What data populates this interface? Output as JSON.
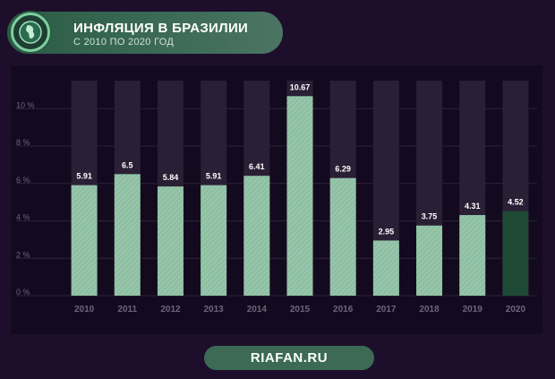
{
  "header": {
    "title": "ИНФЛЯЦИЯ В БРАЗИЛИИ",
    "subtitle": "С 2010 ПО 2020 ГОД"
  },
  "footer": {
    "brand": "RIAFAN.RU"
  },
  "colors": {
    "bar": "#8ebfa3",
    "bar_highlight": "#1f4a36",
    "bar_background": "#2a1f34",
    "axis_text": "#6f6578",
    "label_text": "#ffffff"
  },
  "chart_data": {
    "type": "bar",
    "categories": [
      "2010",
      "2011",
      "2012",
      "2013",
      "2014",
      "2015",
      "2016",
      "2017",
      "2018",
      "2019",
      "2020"
    ],
    "values": [
      5.91,
      6.5,
      5.84,
      5.91,
      6.41,
      10.67,
      6.29,
      2.95,
      3.75,
      4.31,
      4.52
    ],
    "value_labels": [
      "5.91",
      "6.5",
      "5.84",
      "5.91",
      "6.41",
      "10.67",
      "6.29",
      "2.95",
      "3.75",
      "4.31",
      "4.52"
    ],
    "y_ticks": [
      0,
      2,
      4,
      6,
      8,
      10
    ],
    "y_tick_labels": [
      "0 %",
      "2 %",
      "4 %",
      "6 %",
      "8 %",
      "10 %"
    ],
    "ylim": [
      0,
      11.5
    ],
    "highlight_index": 10,
    "grid": true,
    "legend": "none",
    "title": "ИНФЛЯЦИЯ В БРАЗИЛИИ",
    "xlabel": "",
    "ylabel": ""
  }
}
